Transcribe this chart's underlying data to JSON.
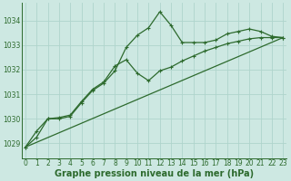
{
  "background_color": "#cde8e2",
  "grid_color": "#afd4cc",
  "line_color": "#2d6a2d",
  "marker_color": "#2d6a2d",
  "xlabel": "Graphe pression niveau de la mer (hPa)",
  "xlabel_fontsize": 7,
  "yticks": [
    1029,
    1030,
    1031,
    1032,
    1033,
    1034
  ],
  "xticks": [
    0,
    1,
    2,
    3,
    4,
    5,
    6,
    7,
    8,
    9,
    10,
    11,
    12,
    13,
    14,
    15,
    16,
    17,
    18,
    19,
    20,
    21,
    22,
    23
  ],
  "xlim": [
    -0.3,
    23.3
  ],
  "ylim": [
    1028.4,
    1034.7
  ],
  "series1_x": [
    0,
    1,
    2,
    3,
    4,
    5,
    6,
    7,
    8,
    9,
    10,
    11,
    12,
    13,
    14,
    15,
    16,
    17,
    18,
    19,
    20,
    21,
    22,
    23
  ],
  "series1_y": [
    1028.85,
    1029.25,
    1030.0,
    1030.0,
    1030.1,
    1030.65,
    1031.15,
    1031.45,
    1031.95,
    1032.9,
    1033.4,
    1033.7,
    1034.35,
    1033.8,
    1033.1,
    1033.1,
    1033.1,
    1033.2,
    1033.45,
    1033.55,
    1033.65,
    1033.55,
    1033.35,
    1033.3
  ],
  "series2_x": [
    0,
    1,
    2,
    3,
    4,
    5,
    6,
    7,
    8,
    9,
    10,
    11,
    12,
    13,
    14,
    15,
    16,
    17,
    18,
    19,
    20,
    21,
    22,
    23
  ],
  "series2_y": [
    1028.85,
    1029.5,
    1030.0,
    1030.05,
    1030.15,
    1030.7,
    1031.2,
    1031.5,
    1032.15,
    1032.4,
    1031.85,
    1031.55,
    1031.95,
    1032.1,
    1032.35,
    1032.55,
    1032.75,
    1032.9,
    1033.05,
    1033.15,
    1033.25,
    1033.3,
    1033.3,
    1033.3
  ],
  "series3_x": [
    0,
    23
  ],
  "series3_y": [
    1028.85,
    1033.3
  ],
  "tick_fontsize": 5.5,
  "tick_color": "#2d6a2d"
}
